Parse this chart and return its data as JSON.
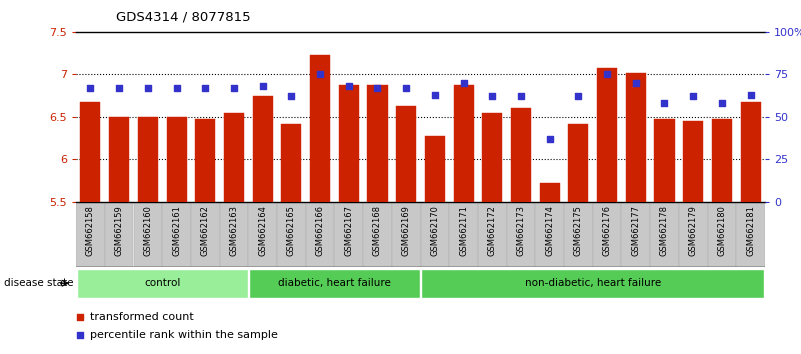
{
  "title": "GDS4314 / 8077815",
  "samples": [
    "GSM662158",
    "GSM662159",
    "GSM662160",
    "GSM662161",
    "GSM662162",
    "GSM662163",
    "GSM662164",
    "GSM662165",
    "GSM662166",
    "GSM662167",
    "GSM662168",
    "GSM662169",
    "GSM662170",
    "GSM662171",
    "GSM662172",
    "GSM662173",
    "GSM662174",
    "GSM662175",
    "GSM662176",
    "GSM662177",
    "GSM662178",
    "GSM662179",
    "GSM662180",
    "GSM662181"
  ],
  "red_values": [
    6.67,
    6.5,
    6.5,
    6.5,
    6.48,
    6.54,
    6.75,
    6.42,
    7.23,
    6.88,
    6.88,
    6.63,
    6.28,
    6.88,
    6.55,
    6.6,
    5.72,
    6.42,
    7.08,
    7.02,
    6.48,
    6.45,
    6.48,
    6.67
  ],
  "blue_values": [
    67,
    67,
    67,
    67,
    67,
    67,
    68,
    62,
    75,
    68,
    67,
    67,
    63,
    70,
    62,
    62,
    37,
    62,
    75,
    70,
    58,
    62,
    58,
    63
  ],
  "ylim_left": [
    5.5,
    7.5
  ],
  "ylim_right": [
    0,
    100
  ],
  "bar_color": "#CC2200",
  "dot_color": "#3333CC",
  "background_color": "#FFFFFF",
  "tick_color_left": "#CC2200",
  "tick_color_right": "#3333CC",
  "group_defs": [
    {
      "start": 0,
      "end": 6,
      "label": "control",
      "color": "#99EE99"
    },
    {
      "start": 6,
      "end": 12,
      "label": "diabetic, heart failure",
      "color": "#55CC55"
    },
    {
      "start": 12,
      "end": 24,
      "label": "non-diabetic, heart failure",
      "color": "#55CC55"
    }
  ]
}
